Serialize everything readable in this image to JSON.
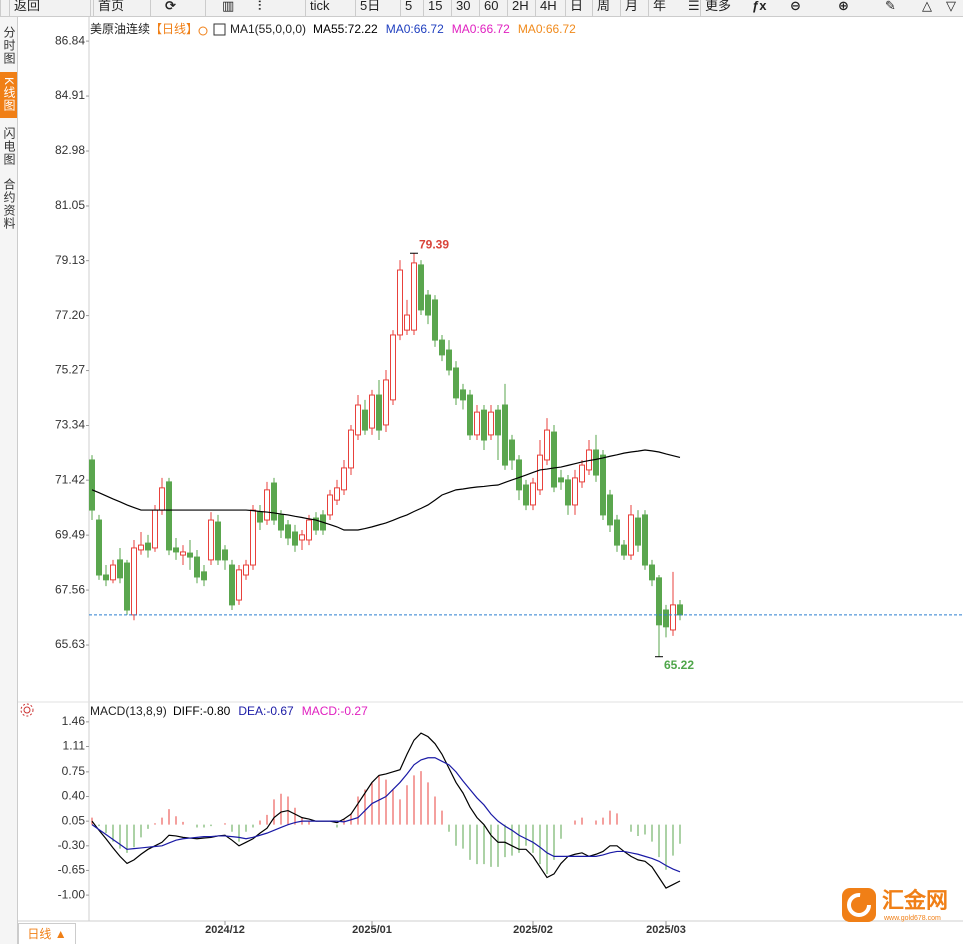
{
  "toolbar": [
    "返回",
    "首页",
    "tick",
    "5日",
    "5",
    "15",
    "30",
    "60",
    "2H",
    "4H",
    "日",
    "周",
    "月",
    "年",
    "更多"
  ],
  "side_tabs": [
    "分时图",
    "K线图",
    "闪电图",
    "合约资料"
  ],
  "bottom_tab": "日线 ▲",
  "watermark": {
    "name": "汇金网",
    "url": "www.gold678.com"
  },
  "chart_data": [
    {
      "type": "candlestick",
      "title": "美原油连续",
      "period_label": "【日线】",
      "indicator": "MA1(55,0,0,0)",
      "legend": [
        {
          "text": "MA55:72.22",
          "color": "#000000"
        },
        {
          "text": "MA0:66.72",
          "color": "#1f3fbf"
        },
        {
          "text": "MA0:66.72",
          "color": "#e020c0"
        },
        {
          "text": "MA0:66.72",
          "color": "#f08a1c"
        }
      ],
      "categories": [
        null,
        null,
        null,
        null,
        null,
        null,
        null,
        null,
        null,
        null,
        null,
        null,
        null,
        null,
        null,
        null,
        null,
        null,
        null,
        "2024/12",
        null,
        null,
        null,
        null,
        null,
        null,
        null,
        null,
        null,
        null,
        null,
        null,
        null,
        null,
        null,
        null,
        null,
        null,
        null,
        null,
        "2025/01",
        null,
        null,
        null,
        null,
        null,
        null,
        null,
        null,
        null,
        null,
        null,
        null,
        null,
        null,
        null,
        null,
        null,
        null,
        null,
        null,
        null,
        null,
        "2025/02",
        null,
        null,
        null,
        null,
        null,
        null,
        null,
        null,
        null,
        null,
        null,
        null,
        null,
        null,
        null,
        null,
        null,
        null,
        "2025/03",
        null,
        null
      ],
      "open": [
        72.13,
        70.02,
        68.09,
        67.92,
        68.62,
        68.51,
        66.69,
        68.97,
        69.21,
        69.04,
        70.37,
        71.36,
        69.04,
        68.79,
        68.86,
        68.72,
        68.2,
        68.62,
        69.95,
        68.97,
        68.44,
        67.21,
        68.09,
        68.44,
        70.3,
        70.02,
        71.32,
        70.2,
        69.85,
        69.6,
        69.32,
        69.32,
        70.09,
        70.2,
        70.2,
        70.72,
        71.08,
        71.85,
        73.01,
        73.88,
        73.25,
        74.41,
        73.36,
        74.24,
        76.52,
        76.69,
        76.69,
        78.98,
        77.92,
        77.75,
        76.34,
        75.99,
        75.36,
        74.59,
        74.41,
        73.01,
        73.88,
        73.01,
        73.88,
        74.06,
        72.83,
        72.13,
        71.25,
        70.55,
        71.08,
        72.13,
        73.11,
        71.5,
        71.43,
        70.55,
        71.36,
        71.78,
        72.48,
        72.3,
        70.9,
        70.02,
        69.14,
        68.79,
        70.09,
        70.2,
        68.44,
        67.99,
        66.86,
        66.16,
        67.04
      ],
      "high": [
        72.3,
        70.2,
        68.44,
        68.62,
        69.04,
        68.62,
        69.32,
        69.6,
        69.5,
        70.55,
        71.5,
        71.5,
        69.39,
        69.14,
        69.32,
        68.97,
        68.44,
        70.3,
        70.2,
        69.14,
        68.62,
        68.44,
        68.62,
        70.55,
        70.55,
        71.36,
        71.5,
        70.37,
        70.02,
        69.85,
        69.67,
        70.2,
        70.3,
        70.37,
        71.08,
        71.43,
        72.13,
        73.36,
        74.41,
        74.24,
        74.59,
        74.94,
        75.29,
        76.69,
        79.15,
        77.75,
        79.39,
        79.15,
        78.1,
        77.92,
        76.52,
        76.34,
        75.6,
        74.8,
        74.59,
        74.06,
        74.06,
        74.06,
        74.06,
        74.8,
        73.01,
        72.3,
        71.43,
        71.5,
        72.83,
        73.6,
        73.36,
        71.78,
        71.6,
        71.78,
        72.13,
        72.83,
        73.01,
        72.48,
        71.08,
        70.2,
        69.32,
        70.55,
        70.37,
        70.37,
        68.62,
        68.09,
        67.04,
        68.2,
        67.21
      ],
      "low": [
        70.02,
        67.92,
        67.7,
        67.8,
        67.8,
        66.69,
        66.5,
        68.8,
        68.7,
        68.9,
        70.2,
        68.79,
        68.62,
        68.44,
        68.27,
        67.8,
        67.7,
        68.44,
        68.44,
        68.27,
        66.86,
        67.04,
        67.92,
        68.27,
        69.67,
        69.85,
        69.85,
        69.39,
        69.14,
        68.9,
        68.97,
        69.14,
        69.5,
        69.5,
        70.02,
        70.55,
        70.9,
        71.6,
        72.83,
        73.01,
        73.01,
        72.83,
        73.11,
        74.06,
        76.34,
        76.52,
        76.52,
        77.22,
        76.9,
        76.1,
        75.6,
        75.1,
        74.06,
        73.9,
        72.83,
        72.83,
        72.48,
        72.83,
        72.13,
        71.78,
        71.78,
        70.72,
        70.37,
        70.37,
        70.9,
        71.95,
        71.0,
        71.08,
        70.2,
        70.2,
        71.15,
        71.6,
        71.36,
        70.02,
        69.6,
        68.9,
        68.62,
        68.62,
        68.9,
        68.27,
        67.7,
        65.22,
        65.9,
        65.95,
        66.5
      ],
      "close": [
        70.37,
        68.09,
        67.92,
        68.44,
        67.99,
        66.86,
        69.04,
        69.14,
        68.97,
        70.37,
        71.15,
        68.97,
        68.9,
        68.9,
        68.72,
        68.02,
        67.92,
        70.02,
        68.62,
        68.62,
        67.04,
        68.27,
        68.44,
        70.37,
        69.95,
        71.08,
        70.02,
        69.67,
        69.39,
        69.14,
        69.5,
        70.02,
        69.67,
        69.67,
        70.9,
        71.15,
        71.85,
        73.18,
        74.06,
        73.18,
        74.41,
        73.18,
        74.94,
        76.52,
        78.8,
        77.22,
        79.05,
        77.4,
        77.22,
        76.34,
        75.82,
        75.29,
        74.31,
        74.24,
        73.01,
        73.81,
        72.83,
        73.81,
        73.01,
        71.95,
        72.13,
        71.08,
        70.55,
        71.32,
        72.3,
        73.18,
        71.18,
        71.36,
        70.55,
        71.5,
        71.95,
        72.48,
        71.6,
        70.2,
        69.85,
        69.14,
        68.79,
        70.2,
        69.14,
        68.44,
        67.92,
        66.34,
        66.27,
        67.04,
        66.69
      ],
      "up_color": "#e8413c",
      "down_color": "#5aa64e",
      "high_label_color": "#d9443a",
      "low_label_color": "#4fa64a",
      "last_line_color": "#2b7fd0",
      "ma": {
        "color": "#000000",
        "values": [
          71.08,
          70.98,
          70.87,
          70.76,
          70.66,
          70.55,
          70.46,
          70.37,
          70.37,
          70.37,
          70.37,
          70.37,
          70.37,
          70.37,
          70.37,
          70.37,
          70.37,
          70.37,
          70.37,
          70.37,
          70.37,
          70.37,
          70.37,
          70.35,
          70.32,
          70.3,
          70.27,
          70.23,
          70.2,
          70.15,
          70.11,
          70.06,
          70.02,
          69.94,
          69.86,
          69.78,
          69.67,
          69.67,
          69.67,
          69.72,
          69.78,
          69.85,
          69.92,
          70.01,
          70.11,
          70.2,
          70.32,
          70.43,
          70.55,
          70.72,
          70.9,
          70.99,
          71.08,
          71.11,
          71.15,
          71.18,
          71.2,
          71.23,
          71.25,
          71.34,
          71.43,
          71.51,
          71.6,
          71.69,
          71.78,
          71.81,
          71.85,
          71.88,
          71.94,
          72.0,
          72.06,
          72.11,
          72.15,
          72.2,
          72.26,
          72.31,
          72.37,
          72.41,
          72.44,
          72.48,
          72.45,
          72.41,
          72.34,
          72.28,
          72.22
        ]
      },
      "ylim": [
        63.7,
        87.23
      ],
      "yticks": [
        86.84,
        84.91,
        82.98,
        81.05,
        79.13,
        {
          "value": 77.2,
          "label": "77.20"
        },
        75.27,
        73.34,
        71.42,
        69.49,
        67.56,
        65.63
      ]
    },
    {
      "type": "macd",
      "title": "MACD(13,8,9)",
      "legend": [
        {
          "text": "DIFF:-0.80",
          "color": "#000000"
        },
        {
          "text": "DEA:-0.67",
          "color": "#1a1aa6"
        },
        {
          "text": "MACD:-0.27",
          "color": "#e020c0"
        }
      ],
      "series": [
        {
          "color": "#000000",
          "values": [
            0.05,
            -0.08,
            -0.2,
            -0.33,
            -0.45,
            -0.55,
            -0.5,
            -0.42,
            -0.35,
            -0.3,
            -0.25,
            -0.15,
            -0.16,
            -0.18,
            -0.19,
            -0.2,
            -0.19,
            -0.18,
            -0.16,
            -0.15,
            -0.22,
            -0.3,
            -0.25,
            -0.2,
            -0.12,
            -0.05,
            0.1,
            0.18,
            0.2,
            0.15,
            0.1,
            0.08,
            0.05,
            0.05,
            0.05,
            0.03,
            0.08,
            0.15,
            0.3,
            0.45,
            0.6,
            0.7,
            0.72,
            0.75,
            0.78,
            1.0,
            1.2,
            1.3,
            1.25,
            1.15,
            1.0,
            0.8,
            0.6,
            0.45,
            0.25,
            0.1,
            0.0,
            -0.15,
            -0.25,
            -0.25,
            -0.3,
            -0.35,
            -0.35,
            -0.45,
            -0.6,
            -0.75,
            -0.7,
            -0.55,
            -0.45,
            -0.42,
            -0.4,
            -0.45,
            -0.42,
            -0.38,
            -0.3,
            -0.3,
            -0.38,
            -0.45,
            -0.5,
            -0.52,
            -0.6,
            -0.75,
            -0.9,
            -0.85,
            -0.8
          ]
        },
        {
          "color": "#1a1aa6",
          "values": [
            0.0,
            -0.07,
            -0.14,
            -0.21,
            -0.28,
            -0.35,
            -0.34,
            -0.33,
            -0.32,
            -0.31,
            -0.3,
            -0.26,
            -0.22,
            -0.2,
            -0.19,
            -0.18,
            -0.17,
            -0.17,
            -0.16,
            -0.16,
            -0.17,
            -0.18,
            -0.2,
            -0.18,
            -0.15,
            -0.12,
            -0.08,
            -0.04,
            0.0,
            0.03,
            0.05,
            0.05,
            0.05,
            0.05,
            0.05,
            0.05,
            0.04,
            0.07,
            0.1,
            0.2,
            0.3,
            0.35,
            0.4,
            0.5,
            0.6,
            0.72,
            0.85,
            0.92,
            0.95,
            0.95,
            0.9,
            0.85,
            0.75,
            0.62,
            0.5,
            0.38,
            0.28,
            0.15,
            0.05,
            -0.02,
            -0.08,
            -0.15,
            -0.2,
            -0.25,
            -0.32,
            -0.4,
            -0.45,
            -0.45,
            -0.45,
            -0.45,
            -0.45,
            -0.45,
            -0.45,
            -0.43,
            -0.4,
            -0.38,
            -0.38,
            -0.4,
            -0.42,
            -0.45,
            -0.48,
            -0.52,
            -0.58,
            -0.63,
            -0.67
          ]
        }
      ],
      "histogram": {
        "up_color": "#e8413c",
        "down_color": "#5aa64e",
        "values": [
          0.1,
          -0.02,
          -0.12,
          -0.24,
          -0.34,
          -0.4,
          -0.32,
          -0.18,
          -0.06,
          0.02,
          0.1,
          0.22,
          0.12,
          0.04,
          0,
          -0.04,
          -0.04,
          -0.02,
          0,
          0.02,
          -0.1,
          -0.24,
          -0.1,
          -0.04,
          0.06,
          0.14,
          0.36,
          0.44,
          0.4,
          0.24,
          0.1,
          0.06,
          0,
          0,
          0,
          -0.04,
          0.08,
          0.16,
          0.4,
          0.5,
          0.6,
          0.7,
          0.64,
          0.5,
          0.36,
          0.56,
          0.7,
          0.76,
          0.6,
          0.4,
          0.2,
          -0.1,
          -0.3,
          -0.34,
          -0.5,
          -0.56,
          -0.56,
          -0.6,
          -0.6,
          -0.46,
          -0.44,
          -0.4,
          -0.3,
          -0.4,
          -0.56,
          -0.7,
          -0.5,
          -0.2,
          0,
          0.06,
          0.1,
          0,
          0.06,
          0.1,
          0.2,
          0.16,
          0,
          -0.1,
          -0.16,
          -0.14,
          -0.24,
          -0.46,
          -0.64,
          -0.44,
          -0.27
        ]
      },
      "ylim": [
        -1.24,
        1.6
      ],
      "yticks": [
        1.46,
        1.11,
        0.75,
        {
          "value": 0.4,
          "label": "0.40"
        },
        0.05,
        {
          "value": -0.3,
          "label": "-0.30"
        },
        -0.65,
        {
          "value": -1,
          "label": "-1.00"
        }
      ]
    }
  ]
}
